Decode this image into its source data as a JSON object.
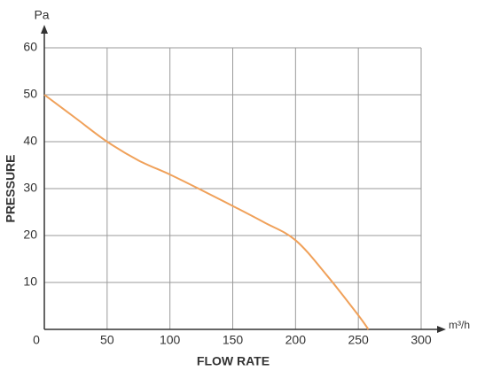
{
  "chart_data": {
    "type": "line",
    "x_label": "FLOW RATE",
    "x_unit": "m³/h",
    "y_label": "PRESSURE",
    "y_unit": "Pa",
    "x": [
      0,
      25,
      50,
      75,
      100,
      125,
      150,
      175,
      200,
      225,
      250,
      258
    ],
    "series": [
      {
        "name": "Pressure",
        "color": "#f0a15a",
        "values": [
          50,
          45,
          40,
          36,
          33,
          29.7,
          26.3,
          22.8,
          19,
          11.5,
          3,
          0
        ]
      }
    ],
    "xlim": [
      0,
      300
    ],
    "xticks": [
      0,
      50,
      100,
      150,
      200,
      250,
      300
    ],
    "ylim": [
      0,
      60
    ],
    "yticks": [
      10,
      20,
      30,
      40,
      50,
      60
    ],
    "grid": true
  }
}
